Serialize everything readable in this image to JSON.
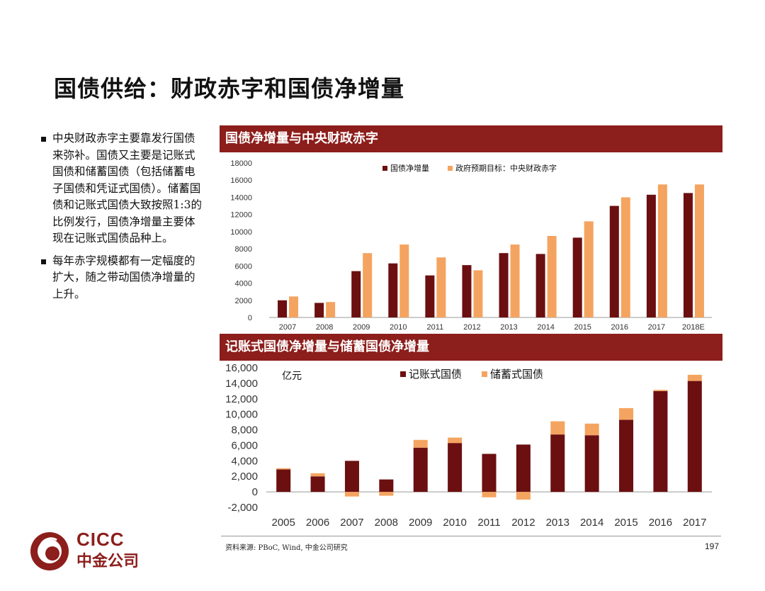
{
  "title": "国债供给：财政赤字和国债净增量",
  "bullets": [
    "中央财政赤字主要靠发行国债来弥补。国债又主要是记账式国债和储蓄国债（包括储蓄电子国债和凭证式国债）。储蓄国债和记账式国债大致按照1:3的比例发行，国债净增量主要体现在记账式国债品种上。",
    "每年赤字规模都有一定幅度的扩大，随之带动国债净增量的上升。"
  ],
  "chart_data": [
    {
      "type": "bar",
      "title": "国债净增量与中央财政赤字",
      "categories": [
        "2007",
        "2008",
        "2009",
        "2010",
        "2011",
        "2012",
        "2013",
        "2014",
        "2015",
        "2016",
        "2017",
        "2018E"
      ],
      "series": [
        {
          "name": "国债净增量",
          "color": "#6b0f10",
          "values": [
            2000,
            1700,
            5400,
            6300,
            4900,
            6100,
            7500,
            7400,
            9300,
            13000,
            14300,
            14500
          ]
        },
        {
          "name": "政府预期目标：中央财政赤字",
          "color": "#f4a460",
          "values": [
            2450,
            1800,
            7500,
            8500,
            7000,
            5500,
            8500,
            9500,
            11200,
            14000,
            15500,
            15500
          ]
        }
      ],
      "ylim": [
        0,
        18000
      ],
      "yticks": [
        "0",
        "2000",
        "4000",
        "6000",
        "8000",
        "10000",
        "12000",
        "14000",
        "16000",
        "18000"
      ],
      "legend": "top"
    },
    {
      "type": "bar",
      "stacked": true,
      "title": "记账式国债净增量与储蓄国债净增量",
      "ylabel": "亿元",
      "categories": [
        "2005",
        "2006",
        "2007",
        "2008",
        "2009",
        "2010",
        "2011",
        "2012",
        "2013",
        "2014",
        "2015",
        "2016",
        "2017"
      ],
      "series": [
        {
          "name": "记账式国债",
          "color": "#6b0f10",
          "values": [
            2900,
            2000,
            4000,
            1600,
            5700,
            6300,
            4900,
            6100,
            7400,
            7300,
            9300,
            13000,
            14300
          ]
        },
        {
          "name": "储蓄式国债",
          "color": "#f4a460",
          "values": [
            150,
            400,
            -600,
            -500,
            1000,
            700,
            -700,
            -1000,
            1700,
            1500,
            1500,
            150,
            800
          ]
        }
      ],
      "ylim": [
        -2000,
        16000
      ],
      "yticks": [
        "-2,000",
        "0",
        "2,000",
        "4,000",
        "6,000",
        "8,000",
        "10,000",
        "12,000",
        "14,000",
        "16,000"
      ],
      "legend": "top"
    }
  ],
  "source": "资料来源: PBoC, Wind, 中金公司研究",
  "page_number": "197",
  "logo": {
    "en": "CICC",
    "cn": "中金公司"
  }
}
